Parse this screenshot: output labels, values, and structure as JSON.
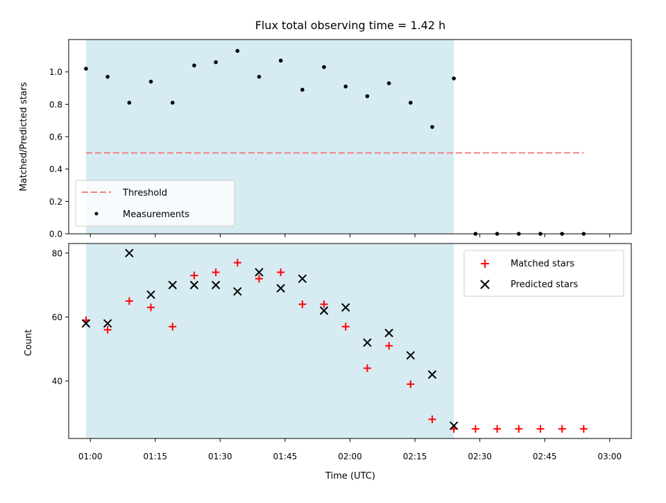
{
  "chart_data": [
    {
      "type": "scatter",
      "title": "Flux total observing time = 1.42 h",
      "xlabel": "",
      "ylabel": "Matched/Predicted stars",
      "ylim": [
        0,
        1.2
      ],
      "yticks": [
        "0.0",
        "0.2",
        "0.4",
        "0.6",
        "0.8",
        "1.0"
      ],
      "ytick_values": [
        0,
        0.2,
        0.4,
        0.6,
        0.8,
        1.0
      ],
      "shaded_x_range": [
        "00:59",
        "02:24"
      ],
      "threshold": {
        "name": "Threshold",
        "value": 0.5,
        "x_range": [
          "00:59",
          "02:54"
        ],
        "color": "#f08080",
        "style": "dashed"
      },
      "series": [
        {
          "name": "Measurements",
          "marker": "dot",
          "color": "#000000",
          "x": [
            "00:59",
            "01:04",
            "01:09",
            "01:14",
            "01:19",
            "01:24",
            "01:29",
            "01:34",
            "01:39",
            "01:44",
            "01:49",
            "01:54",
            "01:59",
            "02:04",
            "02:09",
            "02:14",
            "02:19",
            "02:24",
            "02:29",
            "02:34",
            "02:39",
            "02:44",
            "02:49",
            "02:54"
          ],
          "y": [
            1.02,
            0.97,
            0.81,
            0.94,
            0.81,
            1.04,
            1.06,
            1.13,
            0.97,
            1.07,
            0.89,
            1.03,
            0.91,
            0.85,
            0.93,
            0.81,
            0.66,
            0.96,
            0.0,
            0.0,
            0.0,
            0.0,
            0.0,
            0.0
          ]
        }
      ],
      "legend": {
        "placement": "lower-left",
        "entries": [
          "Threshold",
          "Measurements"
        ]
      },
      "grid": false
    },
    {
      "type": "scatter",
      "title": "",
      "xlabel": "Time (UTC)",
      "ylabel": "Count",
      "ylim": [
        22,
        83
      ],
      "yticks": [
        "40",
        "60",
        "80"
      ],
      "ytick_values": [
        40,
        60,
        80
      ],
      "xticks": [
        "01:00",
        "01:15",
        "01:30",
        "01:45",
        "02:00",
        "02:15",
        "02:30",
        "02:45",
        "03:00"
      ],
      "shaded_x_range": [
        "00:59",
        "02:24"
      ],
      "series": [
        {
          "name": "Matched stars",
          "marker": "plus",
          "color": "#ff0000",
          "x": [
            "00:59",
            "01:04",
            "01:09",
            "01:14",
            "01:19",
            "01:24",
            "01:29",
            "01:34",
            "01:39",
            "01:44",
            "01:49",
            "01:54",
            "01:59",
            "02:04",
            "02:09",
            "02:14",
            "02:19",
            "02:24",
            "02:29",
            "02:34",
            "02:39",
            "02:44",
            "02:49",
            "02:54"
          ],
          "y": [
            59,
            56,
            65,
            63,
            57,
            73,
            74,
            77,
            72,
            74,
            64,
            64,
            57,
            44,
            51,
            39,
            28,
            25,
            25,
            25,
            25,
            25,
            25,
            25
          ]
        },
        {
          "name": "Predicted stars",
          "marker": "x",
          "color": "#000000",
          "x": [
            "00:59",
            "01:04",
            "01:09",
            "01:14",
            "01:19",
            "01:24",
            "01:29",
            "01:34",
            "01:39",
            "01:44",
            "01:49",
            "01:54",
            "01:59",
            "02:04",
            "02:09",
            "02:14",
            "02:19",
            "02:24"
          ],
          "y": [
            58,
            58,
            80,
            67,
            70,
            70,
            70,
            68,
            74,
            69,
            72,
            62,
            63,
            52,
            55,
            48,
            42,
            26
          ]
        }
      ],
      "legend": {
        "placement": "top-right",
        "entries": [
          "Matched stars",
          "Predicted stars"
        ]
      },
      "grid": false
    }
  ],
  "colors": {
    "shade": "#add8e6",
    "shade_opacity": 0.5
  }
}
